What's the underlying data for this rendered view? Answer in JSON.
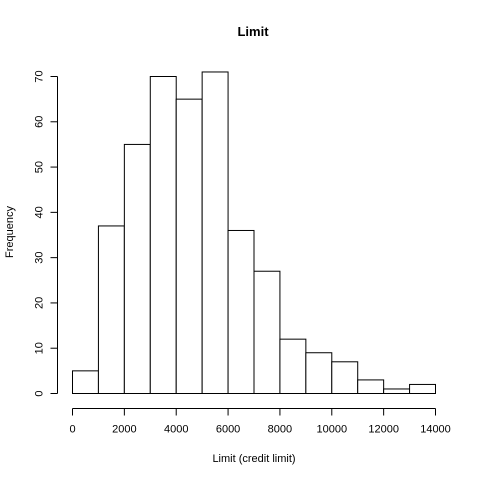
{
  "chart_data": {
    "type": "bar",
    "title": "Limit",
    "xlabel": "Limit (credit limit)",
    "ylabel": "Frequency",
    "bins": [
      {
        "from": 0,
        "to": 1000,
        "value": 5
      },
      {
        "from": 1000,
        "to": 2000,
        "value": 37
      },
      {
        "from": 2000,
        "to": 3000,
        "value": 55
      },
      {
        "from": 3000,
        "to": 4000,
        "value": 70
      },
      {
        "from": 4000,
        "to": 5000,
        "value": 65
      },
      {
        "from": 5000,
        "to": 6000,
        "value": 71
      },
      {
        "from": 6000,
        "to": 7000,
        "value": 36
      },
      {
        "from": 7000,
        "to": 8000,
        "value": 27
      },
      {
        "from": 8000,
        "to": 9000,
        "value": 12
      },
      {
        "from": 9000,
        "to": 10000,
        "value": 9
      },
      {
        "from": 10000,
        "to": 11000,
        "value": 7
      },
      {
        "from": 11000,
        "to": 12000,
        "value": 3
      },
      {
        "from": 12000,
        "to": 13000,
        "value": 1
      },
      {
        "from": 13000,
        "to": 14000,
        "value": 2
      }
    ],
    "xticks": [
      "0",
      "2000",
      "4000",
      "6000",
      "8000",
      "10000",
      "12000",
      "14000"
    ],
    "yticks": [
      "0",
      "10",
      "20",
      "30",
      "40",
      "50",
      "60",
      "70"
    ],
    "xlim": [
      0,
      14000
    ],
    "ylim": [
      0,
      70
    ],
    "grid": false,
    "legend": "none"
  }
}
